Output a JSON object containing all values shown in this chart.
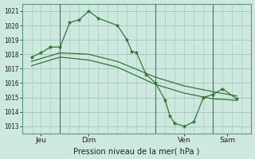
{
  "background_color": "#cce8df",
  "grid_color": "#9ec8b8",
  "line_color": "#2d6e2d",
  "xlabel": "Pression niveau de la mer( hPa )",
  "ylim": [
    1012.5,
    1021.5
  ],
  "yticks": [
    1013,
    1014,
    1015,
    1016,
    1017,
    1018,
    1019,
    1020,
    1021
  ],
  "xlim": [
    0,
    48
  ],
  "vline_x": [
    8,
    28,
    40
  ],
  "day_positions": [
    4,
    14,
    34,
    43
  ],
  "day_labels": [
    "Jeu",
    "Dim",
    "Ven",
    "Sam"
  ],
  "series1_x": [
    2,
    4,
    6,
    8,
    10,
    12,
    14,
    16,
    20,
    22,
    23,
    24,
    26,
    28,
    30,
    31,
    32,
    34,
    36,
    38,
    40,
    42,
    45
  ],
  "series1_y": [
    1017.8,
    1018.1,
    1018.5,
    1018.5,
    1020.2,
    1020.4,
    1021.0,
    1020.5,
    1020.0,
    1019.0,
    1018.2,
    1018.1,
    1016.6,
    1016.0,
    1014.8,
    1013.7,
    1013.2,
    1013.0,
    1013.3,
    1015.0,
    1015.2,
    1015.6,
    1014.9
  ],
  "series2_x": [
    2,
    8,
    14,
    20,
    28,
    34,
    40,
    45
  ],
  "series2_y": [
    1017.5,
    1018.1,
    1018.0,
    1017.5,
    1016.4,
    1015.8,
    1015.4,
    1015.1
  ],
  "series3_x": [
    2,
    8,
    14,
    20,
    28,
    34,
    40,
    45
  ],
  "series3_y": [
    1017.2,
    1017.8,
    1017.6,
    1017.1,
    1015.9,
    1015.3,
    1014.9,
    1014.8
  ]
}
